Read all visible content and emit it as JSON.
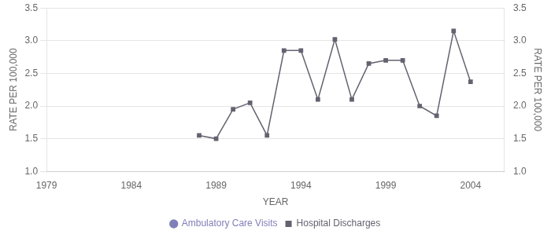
{
  "chart_data": {
    "type": "line",
    "x": [
      1988,
      1989,
      1990,
      1991,
      1992,
      1993,
      1994,
      1995,
      1996,
      1997,
      1998,
      1999,
      2000,
      2001,
      2002,
      2003,
      2004
    ],
    "series": [
      {
        "name": "Ambulatory Care Visits",
        "color": "#8080b8",
        "marker": "circle",
        "line_style": "none",
        "values": [
          null,
          null,
          null,
          null,
          null,
          null,
          null,
          null,
          null,
          null,
          null,
          null,
          null,
          null,
          null,
          null,
          null
        ]
      },
      {
        "name": "Hospital Discharges",
        "color": "#636370",
        "marker": "square",
        "line_style": "solid",
        "values": [
          1.55,
          1.5,
          1.95,
          2.05,
          1.55,
          2.85,
          2.85,
          2.1,
          3.02,
          2.1,
          2.65,
          2.7,
          2.7,
          2.0,
          1.85,
          3.15,
          2.37
        ]
      }
    ],
    "xlabel": "YEAR",
    "ylabel": "RATE PER 100,000",
    "y2label": "RATE PER 100,000",
    "xlim": [
      1979,
      2006
    ],
    "xticks": [
      1979,
      1984,
      1989,
      1994,
      1999,
      2004
    ],
    "ylim": [
      1.0,
      3.5
    ],
    "yticks": [
      {
        "value": 1.0,
        "label": "1.0"
      },
      {
        "value": 1.5,
        "label": "1.5"
      },
      {
        "value": 2.0,
        "label": "2.0"
      },
      {
        "value": 2.5,
        "label": "2.5"
      },
      {
        "value": 3.0,
        "label": "3.0"
      },
      {
        "value": 3.5,
        "label": "3.5"
      }
    ],
    "y2lim": [
      1.0,
      3.5
    ],
    "y2ticks": [
      {
        "value": 1.0,
        "label": "1.0"
      },
      {
        "value": 1.5,
        "label": "1.5"
      },
      {
        "value": 2.0,
        "label": "2.0"
      },
      {
        "value": 2.5,
        "label": "2.5"
      },
      {
        "value": 3.0,
        "label": "3.0"
      },
      {
        "value": 3.5,
        "label": "3.5"
      }
    ],
    "grid": true,
    "legend": "bottom"
  }
}
